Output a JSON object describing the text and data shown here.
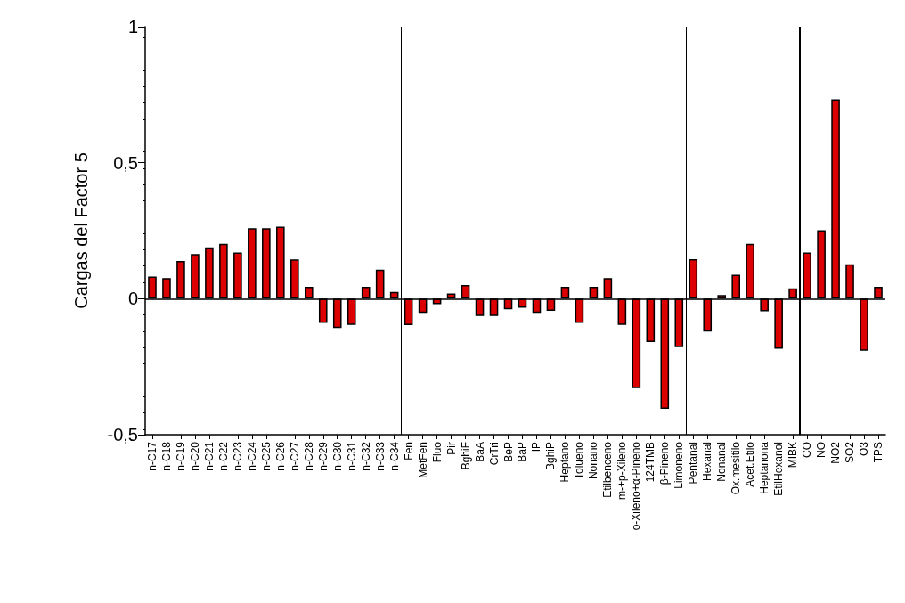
{
  "chart_data": {
    "type": "bar",
    "ylabel": "Cargas del Factor 5",
    "categories": [
      "n-C17",
      "n-C18",
      "n-C19",
      "n-C20",
      "n-C21",
      "n-C22",
      "n-C23",
      "n-C24",
      "n-C25",
      "n-C26",
      "n-C27",
      "n-C28",
      "n-C29",
      "n-C30",
      "n-C31",
      "n-C32",
      "n-C33",
      "n-C34",
      "Fen",
      "MetFen",
      "Fluo",
      "Pir",
      "BghiF",
      "BaA",
      "CrTri",
      "BeP",
      "BaP",
      "IP",
      "BghiP",
      "Heptano",
      "Tolueno",
      "Nonano",
      "Etilbenceno",
      "m-+p-Xileno",
      "o-Xileno+α-Pineno",
      "124TMB",
      "β-Pineno",
      "Limoneno",
      "Pentanal",
      "Hexanal",
      "Nonanal",
      "Ox.mesitilo",
      "Acet.Etilo",
      "Heptanona",
      "EtilHexanol",
      "MIBK",
      "CO",
      "NO",
      "NO2",
      "SO2",
      "O3",
      "TPS"
    ],
    "series": [
      {
        "color": "#dd0000",
        "values": [
          0.081,
          0.076,
          0.139,
          0.164,
          0.189,
          0.202,
          0.17,
          0.259,
          0.259,
          0.265,
          0.144,
          0.044,
          -0.089,
          -0.108,
          -0.096,
          0.044,
          0.107,
          0.025,
          -0.097,
          -0.052,
          -0.02,
          0.019,
          0.05,
          -0.064,
          -0.064,
          -0.039,
          -0.033,
          -0.052,
          -0.045,
          0.044,
          -0.089,
          0.044,
          0.076,
          -0.096,
          -0.329,
          -0.159,
          -0.405,
          -0.178,
          0.145,
          -0.121,
          0.013,
          0.088,
          0.202,
          -0.046,
          -0.184,
          0.038,
          0.17,
          0.252,
          0.733,
          0.126,
          -0.191,
          0.044
        ]
      }
    ],
    "ylim": [
      -0.5,
      1
    ],
    "yticks": [
      {
        "value": -0.5,
        "label": "-0,5"
      },
      0,
      {
        "value": 0.5,
        "label": "0,5"
      },
      1
    ],
    "ref_lines": [
      {
        "axis": "y",
        "value": 0,
        "color": "#000000"
      }
    ],
    "grid": false
  }
}
